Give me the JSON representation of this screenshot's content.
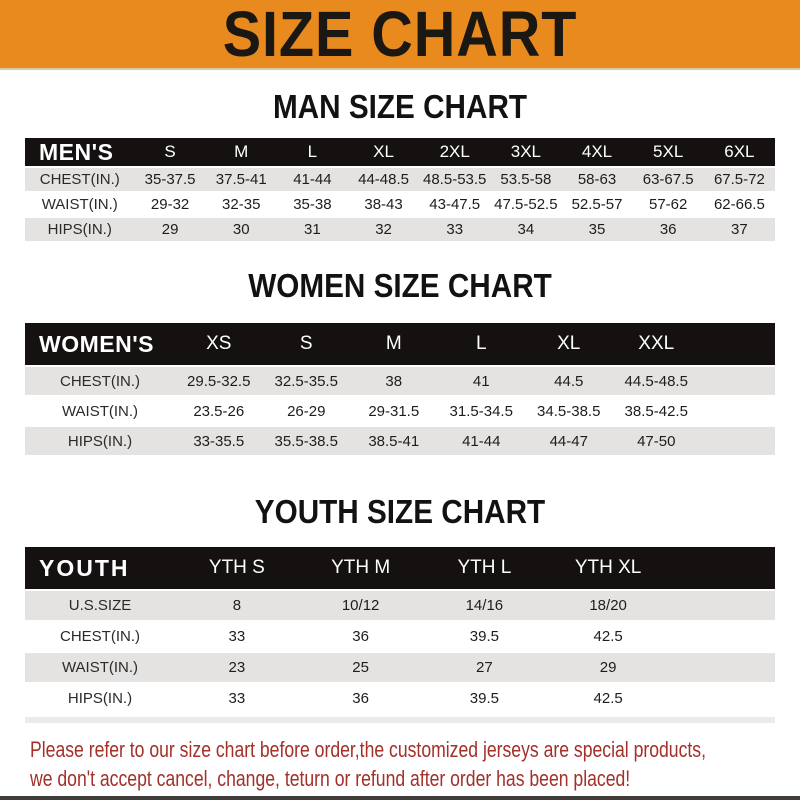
{
  "banner": {
    "title": "SIZE CHART",
    "bg_color": "#E98A1E",
    "text_color": "#1B1713"
  },
  "colors": {
    "header_bar": "#151110",
    "row_stripe": "#E4E3E2",
    "notice_red": "#A4302A"
  },
  "sections": [
    {
      "id": "men",
      "heading": "MAN SIZE CHART",
      "table": {
        "header_label": "MEN'S",
        "columns": [
          "S",
          "M",
          "L",
          "XL",
          "2XL",
          "3XL",
          "4XL",
          "5XL",
          "6XL"
        ],
        "rows": [
          {
            "label": "CHEST(IN.)",
            "values": [
              "35-37.5",
              "37.5-41",
              "41-44",
              "44-48.5",
              "48.5-53.5",
              "53.5-58",
              "58-63",
              "63-67.5",
              "67.5-72"
            ]
          },
          {
            "label": "WAIST(IN.)",
            "values": [
              "29-32",
              "32-35",
              "35-38",
              "38-43",
              "43-47.5",
              "47.5-52.5",
              "52.5-57",
              "57-62",
              "62-66.5"
            ]
          },
          {
            "label": "HIPS(IN.)",
            "values": [
              "29",
              "30",
              "31",
              "32",
              "33",
              "34",
              "35",
              "36",
              "37"
            ]
          }
        ]
      }
    },
    {
      "id": "women",
      "heading": "WOMEN SIZE CHART",
      "table": {
        "header_label": "WOMEN'S",
        "columns": [
          "XS",
          "S",
          "M",
          "L",
          "XL",
          "XXL"
        ],
        "rows": [
          {
            "label": "CHEST(IN.)",
            "values": [
              "29.5-32.5",
              "32.5-35.5",
              "38",
              "41",
              "44.5",
              "44.5-48.5"
            ]
          },
          {
            "label": "WAIST(IN.)",
            "values": [
              "23.5-26",
              "26-29",
              "29-31.5",
              "31.5-34.5",
              "34.5-38.5",
              "38.5-42.5"
            ]
          },
          {
            "label": "HIPS(IN.)",
            "values": [
              "33-35.5",
              "35.5-38.5",
              "38.5-41",
              "41-44",
              "44-47",
              "47-50"
            ]
          }
        ]
      }
    },
    {
      "id": "youth",
      "heading": "YOUTH SIZE CHART",
      "table": {
        "header_label": "YOUTH",
        "columns": [
          "YTH S",
          "YTH M",
          "YTH L",
          "YTH XL"
        ],
        "rows": [
          {
            "label": "U.S.SIZE",
            "values": [
              "8",
              "10/12",
              "14/16",
              "18/20"
            ]
          },
          {
            "label": "CHEST(IN.)",
            "values": [
              "33",
              "36",
              "39.5",
              "42.5"
            ]
          },
          {
            "label": "WAIST(IN.)",
            "values": [
              "23",
              "25",
              "27",
              "29"
            ]
          },
          {
            "label": "HIPS(IN.)",
            "values": [
              "33",
              "36",
              "39.5",
              "42.5"
            ]
          }
        ]
      }
    }
  ],
  "footer": {
    "line1": "Please refer to our size chart before order,the customized jerseys are special products,",
    "line2": "we don't accept cancel, change, teturn or refund after order has been placed!"
  }
}
